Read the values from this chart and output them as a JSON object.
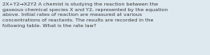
{
  "text": "2X+Y2→X2Y2 A chemist is studying the reaction between the\ngaseous chemical species X and Y2, represented by the equation\nabove. Initial rates of reaction are measured at various\nconcentrations of reactants. The results are recorded in the\nfollowing table. What is the rate law?",
  "background_color": "#dde8ef",
  "text_color": "#3a3a3a",
  "font_size": 4.5,
  "figsize": [
    2.62,
    0.69
  ],
  "dpi": 100
}
